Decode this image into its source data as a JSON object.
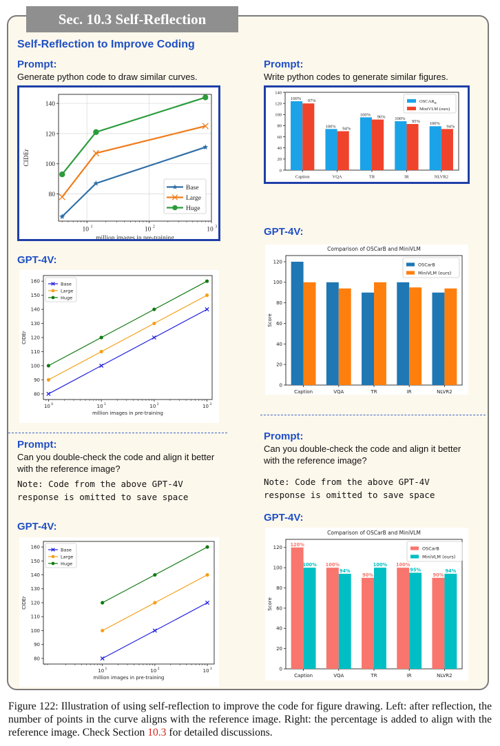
{
  "section_title": "Sec. 10.3 Self-Reflection",
  "subtitle": "Self-Reflection to Improve Coding",
  "left": {
    "prompt_label": "Prompt:",
    "prompt_text": "Generate python code to draw similar curves.",
    "gpt_label_1": "GPT-4V:",
    "prompt2_label": "Prompt:",
    "prompt2_text": "Can you double-check the code and align it better with the reference image?",
    "note": "Note: Code from the above GPT-4V\nresponse is omitted to save space",
    "gpt_label_2": "GPT-4V:"
  },
  "right": {
    "prompt_label": "Prompt:",
    "prompt_text": "Write python codes to generate similar figures.",
    "gpt_label_1": "GPT-4V:",
    "prompt2_label": "Prompt:",
    "prompt2_text": "Can you double-check the code and align it better with the reference image?",
    "note": "Note: Code from the above GPT-4V\nresponse is omitted to save space",
    "gpt_label_2": "GPT-4V:"
  },
  "caption": {
    "text_before": "Figure 122: Illustration of using self-reflection to improve the code for figure drawing. Left: after reflection, the number of points in the curve aligns with the reference image. Right: the percentage is added to align with the reference image. Check Section ",
    "ref": "10.3",
    "text_after": " for detailed discussions."
  },
  "chart_data": [
    {
      "id": "ref-line",
      "type": "line",
      "xlabel": "million images in pre-training",
      "ylabel": "CIDEr",
      "x_scale": "log",
      "xlim": [
        3.5,
        1000
      ],
      "ylim": [
        62,
        146
      ],
      "xticks": [
        {
          "v": 10,
          "l": "10"
        },
        {
          "v": 100,
          "l": "10"
        },
        {
          "v": 1000,
          "l": "10"
        }
      ],
      "yticks": [
        80,
        100,
        120,
        140
      ],
      "grid": true,
      "legend": "lower-right",
      "series": [
        {
          "name": "Base",
          "marker": "star",
          "color": "#2e6fa7",
          "x": [
            4,
            14,
            800
          ],
          "y": [
            65,
            87,
            111
          ]
        },
        {
          "name": "Large",
          "marker": "x",
          "color": "#f07c1b",
          "x": [
            4,
            14,
            800
          ],
          "y": [
            78,
            107,
            125
          ]
        },
        {
          "name": "Huge",
          "marker": "circle",
          "color": "#2c9c3b",
          "x": [
            4,
            14,
            800
          ],
          "y": [
            93,
            121,
            144
          ]
        }
      ]
    },
    {
      "id": "ref-bar",
      "type": "bar",
      "categories": [
        "Caption",
        "VQA",
        "TR",
        "IR",
        "NLVR2"
      ],
      "ylim": [
        0,
        140
      ],
      "yticks": [
        0,
        20,
        40,
        60,
        80,
        100,
        120,
        140
      ],
      "legend": "top-right",
      "series": [
        {
          "name": "OSCAR",
          "name_sub": "B",
          "color": "#1aa3e8",
          "values": [
            124,
            74,
            95,
            88,
            79
          ],
          "labels": [
            "100%",
            "100%",
            "100%",
            "100%",
            "100%"
          ]
        },
        {
          "name": "MiniVLM (ours)",
          "color": "#f0432b",
          "values": [
            120,
            70,
            91,
            83,
            74
          ],
          "labels": [
            "97%",
            "94%",
            "96%",
            "95%",
            "94%"
          ]
        }
      ]
    },
    {
      "id": "gpt-line-1",
      "type": "line",
      "xlabel": "million images in pre-training",
      "ylabel": "CIDEr",
      "x_scale": "log",
      "xlim": [
        0.8,
        1250
      ],
      "ylim": [
        76,
        164
      ],
      "xticks": [
        {
          "v": 1,
          "l": "10"
        },
        {
          "v": 10,
          "l": "10"
        },
        {
          "v": 100,
          "l": "10"
        },
        {
          "v": 1000,
          "l": "10"
        }
      ],
      "yticks": [
        80,
        90,
        100,
        110,
        120,
        130,
        140,
        150,
        160
      ],
      "grid": false,
      "legend": "top-left",
      "series": [
        {
          "name": "Base",
          "marker": "x",
          "color": "#1f1fe0",
          "x": [
            1,
            10,
            100,
            1000
          ],
          "y": [
            80,
            100,
            120,
            140
          ]
        },
        {
          "name": "Large",
          "marker": "circle",
          "color": "#f5a01a",
          "x": [
            1,
            10,
            100,
            1000
          ],
          "y": [
            90,
            110,
            130,
            150
          ]
        },
        {
          "name": "Huge",
          "marker": "circle",
          "color": "#117a11",
          "x": [
            1,
            10,
            100,
            1000
          ],
          "y": [
            100,
            120,
            140,
            160
          ]
        }
      ]
    },
    {
      "id": "gpt-bar-1",
      "type": "bar",
      "title": "Comparison of OSCarB and MiniVLM",
      "ylabel": "Score",
      "categories": [
        "Caption",
        "VQA",
        "TR",
        "IR",
        "NLVR2"
      ],
      "ylim": [
        0,
        126
      ],
      "yticks": [
        0,
        20,
        40,
        60,
        80,
        100,
        120
      ],
      "legend": "top-right",
      "series": [
        {
          "name": "OSCarB",
          "color": "#1f77b4",
          "values": [
            120,
            100,
            90,
            100,
            90
          ]
        },
        {
          "name": "MiniVLM (ours)",
          "color": "#ff7f0e",
          "values": [
            100,
            94,
            100,
            95,
            94
          ]
        }
      ]
    },
    {
      "id": "gpt-line-2",
      "type": "line",
      "xlabel": "million images in pre-training",
      "ylabel": "CIDEr",
      "x_scale": "log",
      "xlim": [
        0.75,
        1350
      ],
      "ylim": [
        76,
        164
      ],
      "xticks": [
        {
          "v": 10,
          "l": "10"
        },
        {
          "v": 100,
          "l": "10"
        },
        {
          "v": 1000,
          "l": "10"
        }
      ],
      "yticks": [
        80,
        90,
        100,
        110,
        120,
        130,
        140,
        150,
        160
      ],
      "grid": false,
      "legend": "top-left",
      "series": [
        {
          "name": "Base",
          "marker": "x",
          "color": "#1f1fe0",
          "x": [
            10,
            100,
            1000
          ],
          "y": [
            80,
            100,
            120
          ]
        },
        {
          "name": "Large",
          "marker": "circle",
          "color": "#f5a01a",
          "x": [
            10,
            100,
            1000
          ],
          "y": [
            100,
            120,
            140
          ]
        },
        {
          "name": "Huge",
          "marker": "circle",
          "color": "#117a11",
          "x": [
            10,
            100,
            1000
          ],
          "y": [
            120,
            140,
            160
          ]
        }
      ]
    },
    {
      "id": "gpt-bar-2",
      "type": "bar",
      "title": "Comparison of OSCarB and MiniVLM",
      "ylabel": "Score",
      "categories": [
        "Caption",
        "VQA",
        "TR",
        "IR",
        "NLVR2"
      ],
      "ylim": [
        0,
        128
      ],
      "yticks": [
        0,
        20,
        40,
        60,
        80,
        100,
        120
      ],
      "legend": "top-right",
      "series": [
        {
          "name": "OSCarB",
          "color": "#f8766d",
          "values": [
            120,
            100,
            90,
            100,
            90
          ],
          "labels": [
            "120%",
            "100%",
            "90%",
            "100%",
            "90%"
          ]
        },
        {
          "name": "MiniVLM (ours)",
          "color": "#00bfc4",
          "values": [
            100,
            94,
            100,
            95,
            94
          ],
          "labels": [
            "100%",
            "94%",
            "100%",
            "95%",
            "94%"
          ]
        }
      ]
    }
  ]
}
